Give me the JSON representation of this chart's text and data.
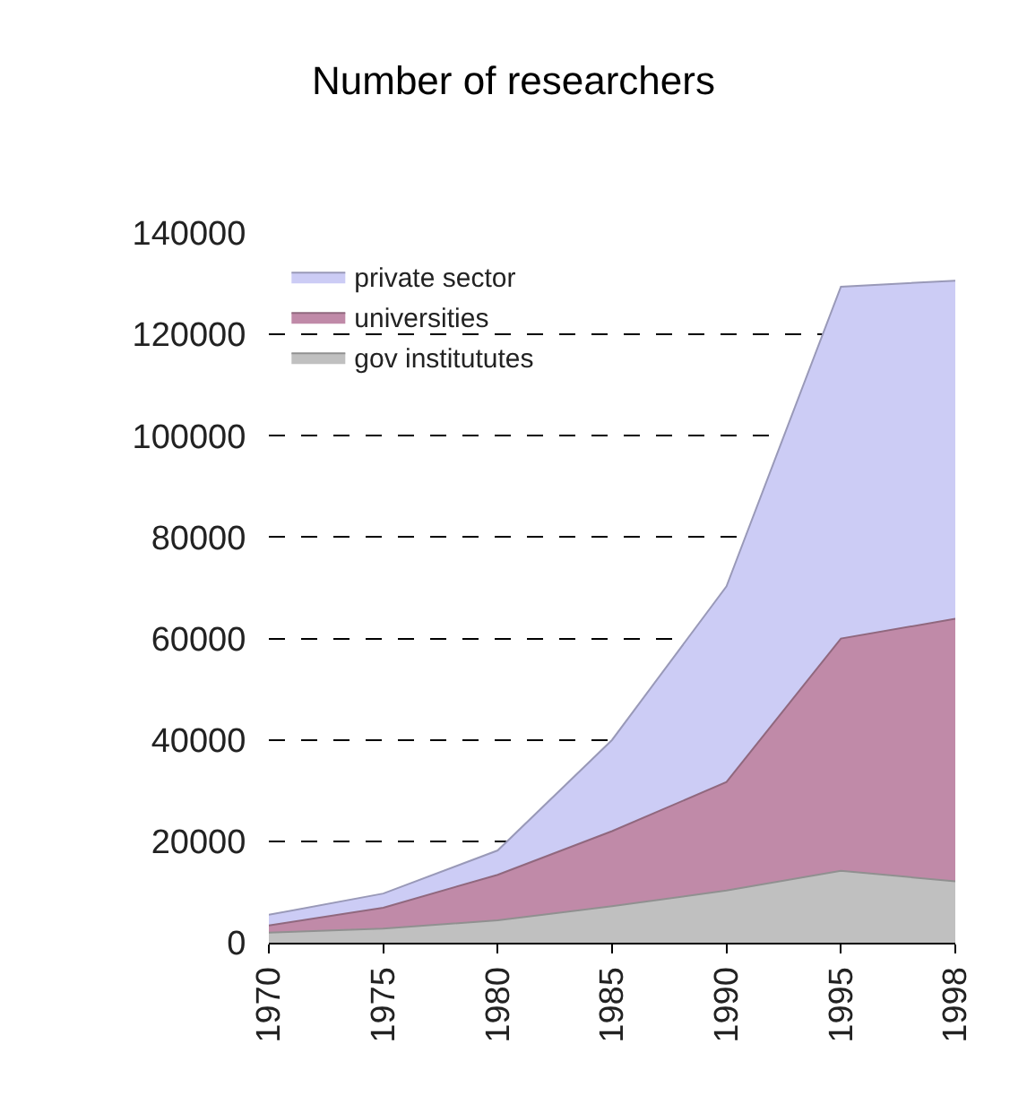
{
  "chart_data": {
    "type": "area",
    "title": "Number of researchers",
    "stacked": true,
    "categories": [
      "1970",
      "1975",
      "1980",
      "1985",
      "1990",
      "1995",
      "1998"
    ],
    "series": [
      {
        "name": "gov institututes",
        "color": "#c0c0c0",
        "values": [
          2000,
          2800,
          4400,
          7200,
          10300,
          14200,
          12100
        ]
      },
      {
        "name": "universities",
        "color": "#c08aa8",
        "values": [
          1400,
          4100,
          9000,
          14800,
          21400,
          45800,
          51800
        ]
      },
      {
        "name": "private sector",
        "color": "#ccccf5",
        "values": [
          2100,
          2800,
          4800,
          18000,
          38600,
          69400,
          66700
        ]
      }
    ],
    "ylim": [
      0,
      140000
    ],
    "yticks": [
      0,
      20000,
      40000,
      60000,
      80000,
      100000,
      120000,
      140000
    ],
    "grid": "y",
    "legend": "top left"
  }
}
